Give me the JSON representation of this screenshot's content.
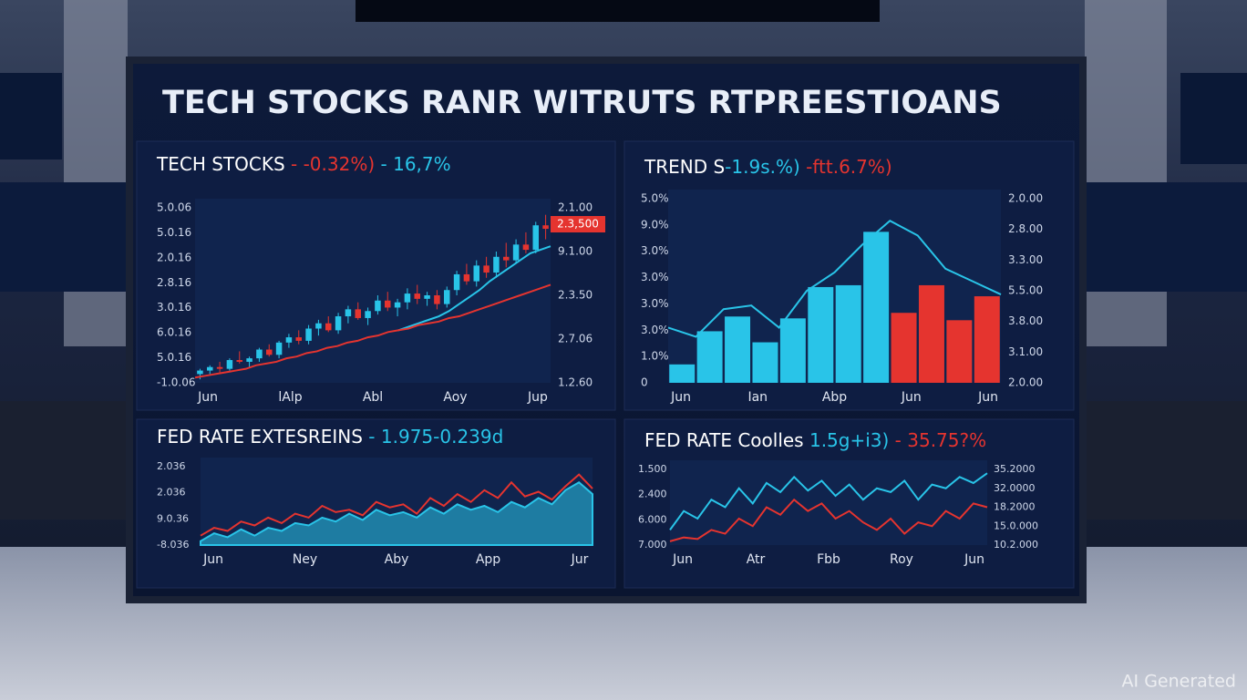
{
  "title": "TECH STOCKS RANR WITRUTS RTPREESTIOANS",
  "watermark": "AI Generated",
  "panels": [
    {
      "title": [
        {
          "text": "TECH STOCKS",
          "color": "#ffffff"
        },
        {
          "text": " - -0.32%)",
          "color": "#e5342f"
        },
        {
          "text": " - 16,7%",
          "color": "#29c4e8"
        }
      ],
      "y_labels": [
        "5.0.06",
        "5.0.16",
        "2.0.16",
        "2.8.16",
        "3.0.16",
        "6.0.16",
        "5.0.16",
        "-1.0.06"
      ],
      "y2_labels": [
        "2.1.00",
        "9.1.00",
        "2.3.50",
        "2.7.06",
        "1.2.60"
      ],
      "badge": "2.3,500",
      "x_labels": [
        "Jun",
        "lAlp",
        "Abl",
        "Aoy",
        "Jup"
      ],
      "series": [
        {
          "kind": "candle",
          "up": "#29c4e8",
          "down": "#e5342f",
          "values": [
            [
              5,
              8,
              2,
              7
            ],
            [
              7,
              10,
              5,
              9
            ],
            [
              9,
              12,
              6,
              8
            ],
            [
              8,
              14,
              7,
              13
            ],
            [
              13,
              18,
              11,
              12
            ],
            [
              12,
              15,
              9,
              14
            ],
            [
              14,
              20,
              12,
              19
            ],
            [
              19,
              22,
              15,
              16
            ],
            [
              16,
              24,
              14,
              23
            ],
            [
              23,
              28,
              20,
              26
            ],
            [
              26,
              30,
              22,
              24
            ],
            [
              24,
              33,
              22,
              31
            ],
            [
              31,
              36,
              27,
              34
            ],
            [
              34,
              38,
              29,
              30
            ],
            [
              30,
              40,
              28,
              38
            ],
            [
              38,
              44,
              34,
              42
            ],
            [
              42,
              46,
              36,
              37
            ],
            [
              37,
              43,
              33,
              41
            ],
            [
              41,
              50,
              39,
              47
            ],
            [
              47,
              52,
              41,
              43
            ],
            [
              43,
              48,
              38,
              46
            ],
            [
              46,
              54,
              42,
              51
            ],
            [
              51,
              56,
              45,
              48
            ],
            [
              48,
              52,
              44,
              50
            ],
            [
              50,
              53,
              42,
              45
            ],
            [
              45,
              55,
              43,
              53
            ],
            [
              53,
              64,
              50,
              62
            ],
            [
              62,
              68,
              56,
              58
            ],
            [
              58,
              70,
              55,
              67
            ],
            [
              67,
              72,
              60,
              63
            ],
            [
              63,
              75,
              60,
              72
            ],
            [
              72,
              80,
              66,
              70
            ],
            [
              70,
              82,
              68,
              79
            ],
            [
              79,
              86,
              74,
              76
            ],
            [
              76,
              92,
              74,
              90
            ],
            [
              90,
              96,
              82,
              88
            ]
          ]
        },
        {
          "kind": "line",
          "color": "#29c4e8",
          "values": [
            null,
            null,
            null,
            null,
            null,
            null,
            null,
            null,
            null,
            null,
            null,
            null,
            null,
            null,
            null,
            null,
            null,
            null,
            null,
            null,
            30,
            32,
            34,
            36,
            38,
            41,
            45,
            49,
            53,
            58,
            62,
            66,
            70,
            74,
            76,
            78
          ]
        },
        {
          "kind": "line",
          "color": "#e5342f",
          "values": [
            3,
            4,
            5,
            6,
            7,
            8,
            10,
            11,
            12,
            14,
            15,
            17,
            18,
            20,
            21,
            23,
            24,
            26,
            27,
            29,
            30,
            31,
            33,
            34,
            35,
            37,
            38,
            40,
            42,
            44,
            46,
            48,
            50,
            52,
            54,
            56
          ]
        }
      ]
    },
    {
      "title": [
        {
          "text": "TREND S",
          "color": "#ffffff"
        },
        {
          "text": "-1.9s.%)",
          "color": "#29c4e8"
        },
        {
          "text": " -ftt.6.7%)",
          "color": "#e5342f"
        }
      ],
      "y_labels": [
        "5.0%",
        "9.0%",
        "3.0%",
        "3.0%",
        "3.0%",
        "3.0%",
        "1.0%",
        "0"
      ],
      "y2_labels": [
        "2.0.00",
        "2.8.00",
        "3.3.00",
        "5.5.00",
        "3.8.00",
        "3.1.00",
        "2.0.00"
      ],
      "x_labels": [
        "Jun",
        "Ian",
        "Abp",
        "Jun",
        "Jun"
      ],
      "series": [
        {
          "kind": "bar",
          "color": "#29c4e8",
          "values": [
            10,
            28,
            36,
            22,
            35,
            52,
            53,
            82,
            null,
            null,
            null,
            null
          ]
        },
        {
          "kind": "bar",
          "color": "#e5342f",
          "values": [
            null,
            null,
            null,
            null,
            null,
            null,
            null,
            null,
            38,
            53,
            34,
            47
          ]
        },
        {
          "kind": "line",
          "color": "#29c4e8",
          "values": [
            30,
            25,
            40,
            42,
            30,
            50,
            60,
            75,
            88,
            80,
            62,
            55,
            48
          ]
        }
      ]
    },
    {
      "title": [
        {
          "text": "FED RATE EXTESREINS",
          "color": "#ffffff"
        },
        {
          "text": " - 1.975-0.239d",
          "color": "#29c4e8"
        }
      ],
      "y_labels": [
        "2.036",
        "2.036",
        "9.0.36",
        "-8.036"
      ],
      "y2_labels": [],
      "x_labels": [
        "Jun",
        "Ney",
        "Aby",
        "App",
        "Jur"
      ],
      "series": [
        {
          "kind": "area",
          "color": "#29c4e8",
          "values": [
            5,
            15,
            10,
            20,
            12,
            22,
            18,
            28,
            25,
            35,
            30,
            40,
            32,
            45,
            38,
            42,
            35,
            48,
            40,
            52,
            45,
            50,
            42,
            55,
            48,
            60,
            52,
            70,
            80,
            65
          ]
        },
        {
          "kind": "line",
          "color": "#e5342f",
          "values": [
            12,
            22,
            18,
            30,
            25,
            35,
            28,
            40,
            35,
            50,
            42,
            45,
            38,
            55,
            48,
            52,
            40,
            60,
            50,
            65,
            55,
            70,
            60,
            80,
            62,
            68,
            58,
            75,
            90,
            72
          ]
        }
      ]
    },
    {
      "title": [
        {
          "text": "FED RATE Coolles",
          "color": "#ffffff"
        },
        {
          "text": " 1.5g+i3)",
          "color": "#29c4e8"
        },
        {
          "text": " - 35.75?%",
          "color": "#e5342f"
        }
      ],
      "y_labels": [
        "1.500",
        "2.400",
        "6.000",
        "7.000"
      ],
      "y2_labels": [
        "35.2000",
        "32.0000",
        "18.2000",
        "15.0.000",
        "10.2.000"
      ],
      "x_labels": [
        "Jun",
        "Atr",
        "Fbb",
        "Roy",
        "Jun"
      ],
      "series": [
        {
          "kind": "line",
          "color": "#29c4e8",
          "values": [
            20,
            45,
            35,
            60,
            50,
            75,
            55,
            82,
            70,
            90,
            72,
            85,
            65,
            80,
            60,
            75,
            70,
            85,
            60,
            80,
            75,
            90,
            82,
            95
          ]
        },
        {
          "kind": "line",
          "color": "#e5342f",
          "values": [
            5,
            10,
            8,
            20,
            15,
            35,
            25,
            50,
            40,
            60,
            45,
            55,
            35,
            45,
            30,
            20,
            35,
            15,
            30,
            25,
            45,
            35,
            55,
            50
          ]
        }
      ]
    }
  ]
}
